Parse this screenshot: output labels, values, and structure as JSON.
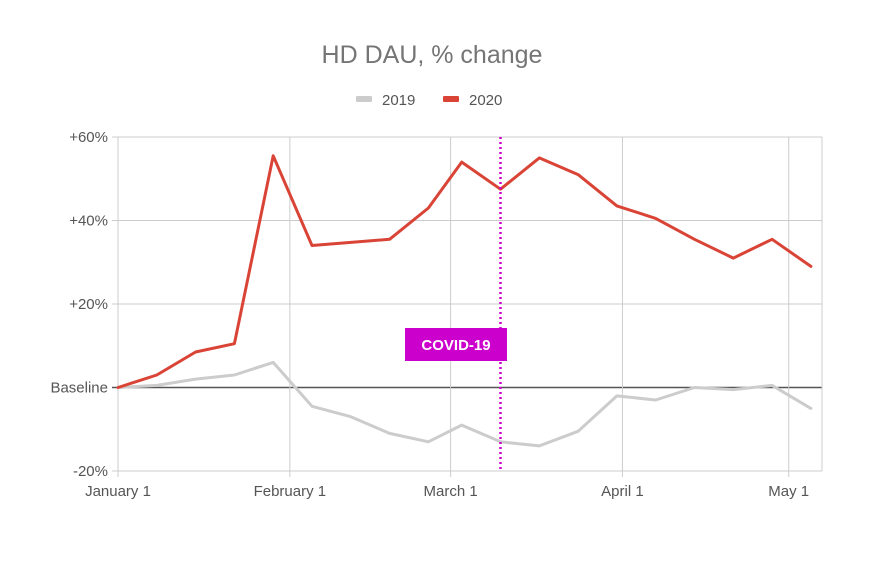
{
  "chart_data": {
    "type": "line",
    "title": "HD DAU, % change",
    "xlabel": "",
    "ylabel": "",
    "x_ticks": [
      "January 1",
      "February 1",
      "March 1",
      "April 1",
      "May 1"
    ],
    "y_ticks": [
      "+60%",
      "+40%",
      "+20%",
      "Baseline",
      "-20%"
    ],
    "y_tick_values": [
      60,
      40,
      20,
      0,
      -20
    ],
    "ylim": [
      -20,
      60
    ],
    "grid": true,
    "legend_position": "top-center",
    "annotation": {
      "label": "COVID-19",
      "x": "Mar 10",
      "color": "#cc00cc"
    },
    "series": [
      {
        "name": "2019",
        "color": "#cccccc",
        "x": [
          "Jan 1",
          "Jan 8",
          "Jan 15",
          "Jan 22",
          "Jan 29",
          "Feb 5",
          "Feb 12",
          "Feb 19",
          "Feb 26",
          "Mar 3",
          "Mar 10",
          "Mar 17",
          "Mar 24",
          "Mar 31",
          "Apr 7",
          "Apr 14",
          "Apr 21",
          "Apr 28",
          "May 5"
        ],
        "values": [
          0,
          0.5,
          2,
          3,
          6,
          -4.5,
          -7,
          -11,
          -13,
          -9,
          -13,
          -14,
          -10.5,
          -2,
          -3,
          0,
          -0.5,
          0.5,
          -5
        ]
      },
      {
        "name": "2020",
        "color": "#d94436",
        "x": [
          "Jan 1",
          "Jan 8",
          "Jan 15",
          "Jan 22",
          "Jan 29",
          "Feb 5",
          "Feb 19",
          "Feb 26",
          "Mar 3",
          "Mar 10",
          "Mar 17",
          "Mar 24",
          "Mar 31",
          "Apr 7",
          "Apr 14",
          "Apr 21",
          "Apr 28",
          "May 5"
        ],
        "values": [
          0,
          3,
          8.5,
          10.5,
          55.5,
          34,
          35.5,
          43,
          54,
          47.5,
          55,
          51,
          43.5,
          40.5,
          35.5,
          31,
          35.5,
          29
        ]
      }
    ]
  }
}
